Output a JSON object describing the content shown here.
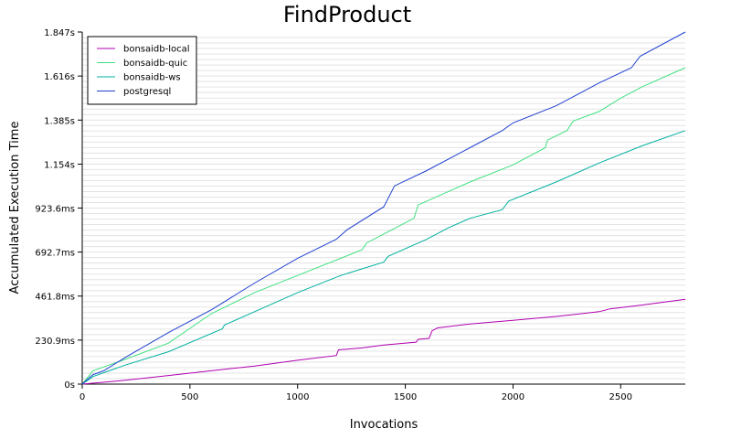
{
  "chart_data": {
    "type": "line",
    "title": "FindProduct",
    "xlabel": "Invocations",
    "ylabel": "Accumulated Execution Time",
    "xlim": [
      0,
      2800
    ],
    "ylim": [
      0,
      1847
    ],
    "x_unit": "invocations",
    "y_unit": "ms",
    "xticks": [
      0,
      500,
      1000,
      1500,
      2000,
      2500
    ],
    "xtick_labels": [
      "0",
      "500",
      "1000",
      "1500",
      "2000",
      "2500"
    ],
    "yticks": [
      0,
      230.9,
      461.8,
      692.7,
      923.6,
      1154,
      1385,
      1616,
      1847
    ],
    "ytick_labels": [
      "0s",
      "230.9ms",
      "461.8ms",
      "692.7ms",
      "923.6ms",
      "1.154s",
      "1.385s",
      "1.616s",
      "1.847s"
    ],
    "grid": true,
    "legend_position": "top-left",
    "series": [
      {
        "name": "bonsaidb-local",
        "color": "#b000b0",
        "points": [
          [
            0,
            0
          ],
          [
            200,
            20
          ],
          [
            400,
            45
          ],
          [
            600,
            70
          ],
          [
            800,
            95
          ],
          [
            1000,
            125
          ],
          [
            1180,
            150
          ],
          [
            1190,
            180
          ],
          [
            1300,
            190
          ],
          [
            1400,
            205
          ],
          [
            1550,
            220
          ],
          [
            1560,
            235
          ],
          [
            1610,
            240
          ],
          [
            1625,
            280
          ],
          [
            1650,
            295
          ],
          [
            1800,
            315
          ],
          [
            2000,
            335
          ],
          [
            2200,
            355
          ],
          [
            2400,
            380
          ],
          [
            2450,
            395
          ],
          [
            2600,
            415
          ],
          [
            2800,
            445
          ]
        ]
      },
      {
        "name": "bonsaidb-quic",
        "color": "#40e080",
        "points": [
          [
            0,
            0
          ],
          [
            50,
            70
          ],
          [
            100,
            90
          ],
          [
            200,
            130
          ],
          [
            400,
            215
          ],
          [
            600,
            370
          ],
          [
            800,
            480
          ],
          [
            1000,
            570
          ],
          [
            1200,
            660
          ],
          [
            1300,
            705
          ],
          [
            1320,
            740
          ],
          [
            1540,
            870
          ],
          [
            1560,
            940
          ],
          [
            1800,
            1060
          ],
          [
            2000,
            1150
          ],
          [
            2150,
            1240
          ],
          [
            2160,
            1280
          ],
          [
            2250,
            1330
          ],
          [
            2280,
            1380
          ],
          [
            2400,
            1430
          ],
          [
            2500,
            1500
          ],
          [
            2600,
            1560
          ],
          [
            2800,
            1660
          ]
        ]
      },
      {
        "name": "bonsaidb-ws",
        "color": "#00b0a0",
        "points": [
          [
            0,
            0
          ],
          [
            50,
            40
          ],
          [
            100,
            60
          ],
          [
            200,
            100
          ],
          [
            400,
            170
          ],
          [
            650,
            290
          ],
          [
            660,
            310
          ],
          [
            800,
            380
          ],
          [
            1000,
            480
          ],
          [
            1200,
            570
          ],
          [
            1400,
            640
          ],
          [
            1420,
            670
          ],
          [
            1600,
            760
          ],
          [
            1700,
            820
          ],
          [
            1800,
            870
          ],
          [
            1950,
            915
          ],
          [
            1980,
            960
          ],
          [
            2200,
            1060
          ],
          [
            2400,
            1160
          ],
          [
            2600,
            1250
          ],
          [
            2800,
            1330
          ]
        ]
      },
      {
        "name": "postgresql",
        "color": "#2040d0",
        "points": [
          [
            0,
            0
          ],
          [
            50,
            50
          ],
          [
            100,
            70
          ],
          [
            200,
            140
          ],
          [
            400,
            270
          ],
          [
            600,
            390
          ],
          [
            800,
            530
          ],
          [
            1000,
            660
          ],
          [
            1180,
            760
          ],
          [
            1230,
            810
          ],
          [
            1400,
            930
          ],
          [
            1450,
            1040
          ],
          [
            1600,
            1120
          ],
          [
            1800,
            1240
          ],
          [
            1950,
            1330
          ],
          [
            2000,
            1370
          ],
          [
            2200,
            1460
          ],
          [
            2400,
            1580
          ],
          [
            2550,
            1660
          ],
          [
            2590,
            1720
          ],
          [
            2800,
            1847
          ]
        ]
      }
    ]
  }
}
